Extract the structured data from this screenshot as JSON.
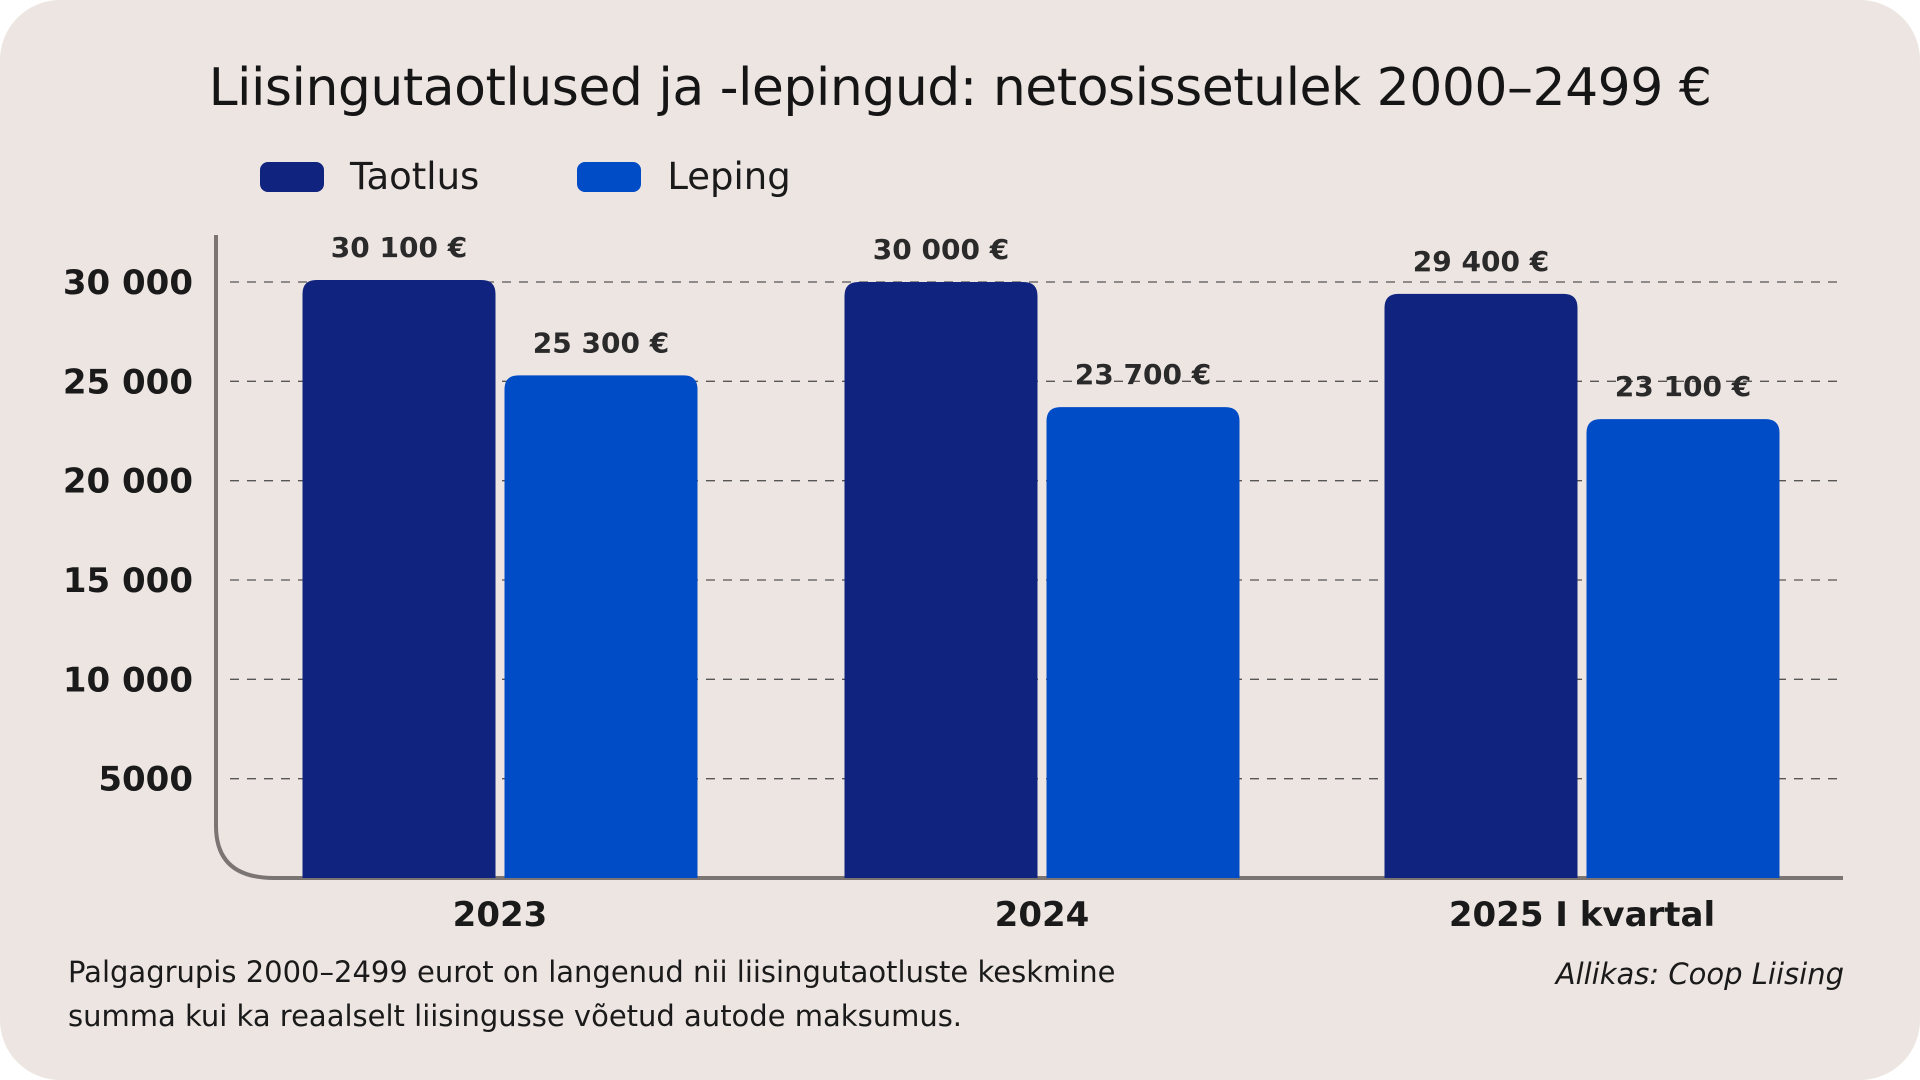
{
  "title": "Liisingutaotlused ja -lepingud: netosissetulek 2000–2499 €",
  "legend": [
    {
      "label": "Taotlus",
      "color": "#10247f"
    },
    {
      "label": "Leping",
      "color": "#004bc6"
    }
  ],
  "footnote": {
    "line1": "Palgagrupis 2000–2499 eurot on langenud nii liisingutaotluste keskmine",
    "line2": "summa kui ka reaalselt liisingusse võetud autode maksumus."
  },
  "source": "Allikas: Coop Liising",
  "chart_data": {
    "type": "bar",
    "categories": [
      "2023",
      "2024",
      "2025 I kvartal"
    ],
    "series": [
      {
        "name": "Taotlus",
        "values": [
          30100,
          30000,
          29400
        ],
        "labels": [
          "30 100 €",
          "30 000 €",
          "29 400 €"
        ],
        "color": "#10247f"
      },
      {
        "name": "Leping",
        "values": [
          25300,
          23700,
          23100
        ],
        "labels": [
          "25 300 €",
          "23 700 €",
          "23 100 €"
        ],
        "color": "#004bc6"
      }
    ],
    "yticks": [
      {
        "value": 5000,
        "label": "5000"
      },
      {
        "value": 10000,
        "label": "10 000"
      },
      {
        "value": 15000,
        "label": "15 000"
      },
      {
        "value": 20000,
        "label": "20 000"
      },
      {
        "value": 25000,
        "label": "25 000"
      },
      {
        "value": 30000,
        "label": "30 000"
      }
    ],
    "ylim": [
      0,
      30000
    ],
    "grid": "dashed horizontal",
    "legend_position": "top-left"
  }
}
